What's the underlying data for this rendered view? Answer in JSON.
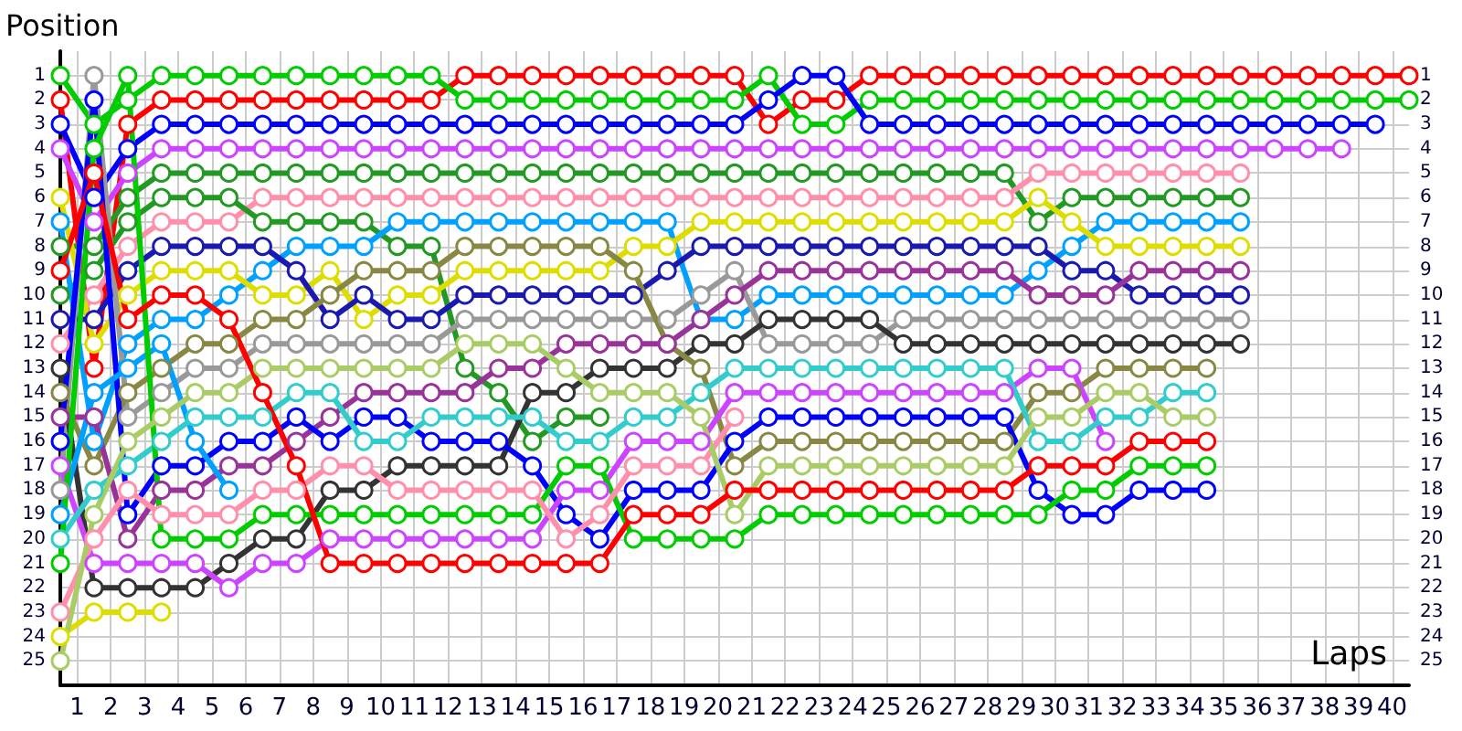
{
  "chart_data": {
    "type": "line",
    "xlabel": "Laps",
    "ylabel": "Position",
    "marker": "circle",
    "line_style": "solid",
    "grid": true,
    "x": [
      0,
      1,
      2,
      3,
      4,
      5,
      6,
      7,
      8,
      9,
      10,
      11,
      12,
      13,
      14,
      15,
      16,
      17,
      18,
      19,
      20,
      21,
      22,
      23,
      24,
      25,
      26,
      27,
      28,
      29,
      30,
      31,
      32,
      33,
      34,
      35,
      36,
      37,
      38,
      39,
      40
    ],
    "xlim": [
      0,
      40
    ],
    "xticks": [
      {
        "value": 0.5,
        "label": "1"
      },
      {
        "value": 1.5,
        "label": "2"
      },
      {
        "value": 2.5,
        "label": "3"
      },
      {
        "value": 3.5,
        "label": "4"
      },
      {
        "value": 4.5,
        "label": "5"
      },
      {
        "value": 5.5,
        "label": "6"
      },
      {
        "value": 6.5,
        "label": "7"
      },
      {
        "value": 7.5,
        "label": "8"
      },
      {
        "value": 8.5,
        "label": "9"
      },
      {
        "value": 9.5,
        "label": "10"
      },
      {
        "value": 10.5,
        "label": "11"
      },
      {
        "value": 11.5,
        "label": "12"
      },
      {
        "value": 12.5,
        "label": "13"
      },
      {
        "value": 13.5,
        "label": "14"
      },
      {
        "value": 14.5,
        "label": "15"
      },
      {
        "value": 15.5,
        "label": "16"
      },
      {
        "value": 16.5,
        "label": "17"
      },
      {
        "value": 17.5,
        "label": "18"
      },
      {
        "value": 18.5,
        "label": "19"
      },
      {
        "value": 19.5,
        "label": "20"
      },
      {
        "value": 20.5,
        "label": "21"
      },
      {
        "value": 21.5,
        "label": "22"
      },
      {
        "value": 22.5,
        "label": "23"
      },
      {
        "value": 23.5,
        "label": "24"
      },
      {
        "value": 24.5,
        "label": "25"
      },
      {
        "value": 25.5,
        "label": "26"
      },
      {
        "value": 26.5,
        "label": "27"
      },
      {
        "value": 27.5,
        "label": "28"
      },
      {
        "value": 28.5,
        "label": "29"
      },
      {
        "value": 29.5,
        "label": "30"
      },
      {
        "value": 30.5,
        "label": "31"
      },
      {
        "value": 31.5,
        "label": "32"
      },
      {
        "value": 32.5,
        "label": "33"
      },
      {
        "value": 33.5,
        "label": "34"
      },
      {
        "value": 34.5,
        "label": "35"
      },
      {
        "value": 35.5,
        "label": "36"
      },
      {
        "value": 36.5,
        "label": "37"
      },
      {
        "value": 37.5,
        "label": "38"
      },
      {
        "value": 38.5,
        "label": "39"
      },
      {
        "value": 39.5,
        "label": "40"
      }
    ],
    "ylim": [
      26,
      0
    ],
    "yticks": [
      1,
      2,
      3,
      4,
      5,
      6,
      7,
      8,
      9,
      10,
      11,
      12,
      13,
      14,
      15,
      16,
      17,
      18,
      19,
      20,
      21,
      22,
      23,
      24,
      25
    ],
    "y2lim": [
      26,
      0
    ],
    "y2ticks": [
      1,
      2,
      3,
      4,
      5,
      6,
      7,
      8,
      9,
      10,
      11,
      12,
      13,
      14,
      15,
      16,
      17,
      18,
      19,
      20,
      21,
      22,
      23,
      24,
      25
    ],
    "series": [
      {
        "color": "#ff0000",
        "values": [
          2,
          13,
          3,
          2,
          2,
          2,
          2,
          2,
          2,
          2,
          2,
          2,
          1,
          1,
          1,
          1,
          1,
          1,
          1,
          1,
          1,
          3,
          2,
          2,
          1,
          1,
          1,
          1,
          1,
          1,
          1,
          1,
          1,
          1,
          1,
          1,
          1,
          1,
          1,
          1,
          1
        ]
      },
      {
        "color": "#00cc00",
        "values": [
          1,
          3,
          2,
          1,
          1,
          1,
          1,
          1,
          1,
          1,
          1,
          1,
          2,
          2,
          2,
          2,
          2,
          2,
          2,
          2,
          2,
          1,
          3,
          3,
          2,
          2,
          2,
          2,
          2,
          2,
          2,
          2,
          2,
          2,
          2,
          2,
          2,
          2,
          2,
          2,
          2
        ]
      },
      {
        "color": "#0000ff",
        "values": [
          3,
          6,
          4,
          3,
          3,
          3,
          3,
          3,
          3,
          3,
          3,
          3,
          3,
          3,
          3,
          3,
          3,
          3,
          3,
          3,
          3,
          2,
          1,
          1,
          3,
          3,
          3,
          3,
          3,
          3,
          3,
          3,
          3,
          3,
          3,
          3,
          3,
          3,
          3,
          3,
          null
        ]
      },
      {
        "color": "#cc44ff",
        "values": [
          4,
          7,
          5,
          4,
          4,
          4,
          4,
          4,
          4,
          4,
          4,
          4,
          4,
          4,
          4,
          4,
          4,
          4,
          4,
          4,
          4,
          4,
          4,
          4,
          4,
          4,
          4,
          4,
          4,
          4,
          4,
          4,
          4,
          4,
          4,
          4,
          4,
          4,
          4,
          null,
          null
        ]
      },
      {
        "color": "#229922",
        "values": [
          8,
          8,
          6,
          5,
          5,
          5,
          5,
          5,
          5,
          5,
          5,
          5,
          5,
          5,
          5,
          5,
          5,
          5,
          5,
          5,
          5,
          5,
          5,
          5,
          5,
          5,
          5,
          5,
          5,
          7,
          6,
          6,
          6,
          6,
          6,
          6,
          null,
          null,
          null,
          null,
          null
        ]
      },
      {
        "color": "#ff8faa",
        "values": [
          12,
          10,
          8,
          7,
          7,
          7,
          6,
          6,
          6,
          6,
          6,
          6,
          6,
          6,
          6,
          6,
          6,
          6,
          6,
          6,
          6,
          6,
          6,
          6,
          6,
          6,
          6,
          6,
          6,
          5,
          5,
          5,
          5,
          5,
          5,
          5,
          null,
          null,
          null,
          null,
          null
        ]
      },
      {
        "color": "#229922",
        "values": [
          10,
          9,
          7,
          6,
          6,
          6,
          7,
          7,
          7,
          7,
          8,
          8,
          13,
          14,
          16,
          15,
          15,
          null,
          null,
          null,
          null,
          null,
          null,
          null,
          null,
          null,
          null,
          null,
          null,
          null,
          null,
          null,
          null,
          null,
          null,
          null,
          null,
          null,
          null,
          null,
          null
        ]
      },
      {
        "color": "#00a0ff",
        "values": [
          7,
          16,
          12,
          11,
          11,
          10,
          9,
          8,
          8,
          8,
          7,
          7,
          7,
          7,
          7,
          7,
          7,
          7,
          7,
          11,
          11,
          10,
          10,
          10,
          10,
          10,
          10,
          10,
          10,
          9,
          8,
          7,
          7,
          7,
          7,
          7,
          null,
          null,
          null,
          null,
          null
        ]
      },
      {
        "color": "#dddd00",
        "values": [
          6,
          12,
          10,
          9,
          9,
          9,
          10,
          10,
          9,
          11,
          10,
          10,
          9,
          9,
          9,
          9,
          9,
          8,
          8,
          7,
          7,
          7,
          7,
          7,
          7,
          7,
          7,
          7,
          7,
          6,
          7,
          8,
          8,
          8,
          8,
          8,
          null,
          null,
          null,
          null,
          null
        ]
      },
      {
        "color": "#1a1ab0",
        "values": [
          11,
          11,
          9,
          8,
          8,
          8,
          8,
          9,
          11,
          10,
          11,
          11,
          10,
          10,
          10,
          10,
          10,
          10,
          9,
          8,
          8,
          8,
          8,
          8,
          8,
          8,
          8,
          8,
          8,
          8,
          9,
          9,
          10,
          10,
          10,
          10,
          null,
          null,
          null,
          null,
          null
        ]
      },
      {
        "color": "#999999",
        "values": [
          18,
          1,
          15,
          14,
          13,
          13,
          12,
          12,
          12,
          12,
          12,
          12,
          11,
          11,
          11,
          11,
          11,
          11,
          11,
          10,
          9,
          12,
          12,
          12,
          12,
          11,
          11,
          11,
          11,
          11,
          11,
          11,
          11,
          11,
          11,
          11,
          null,
          null,
          null,
          null,
          null
        ]
      },
      {
        "color": "#333333",
        "values": [
          13,
          22,
          22,
          22,
          22,
          21,
          20,
          20,
          18,
          18,
          17,
          17,
          17,
          17,
          14,
          14,
          13,
          13,
          13,
          12,
          12,
          11,
          11,
          11,
          11,
          12,
          12,
          12,
          12,
          12,
          12,
          12,
          12,
          12,
          12,
          12,
          null,
          null,
          null,
          null,
          null
        ]
      },
      {
        "color": "#888844",
        "values": [
          14,
          17,
          14,
          13,
          12,
          12,
          11,
          11,
          10,
          9,
          9,
          9,
          8,
          8,
          8,
          8,
          8,
          9,
          12,
          13,
          17,
          16,
          16,
          16,
          16,
          16,
          16,
          16,
          16,
          14,
          14,
          13,
          13,
          13,
          13,
          null,
          null,
          null,
          null,
          null,
          null
        ]
      },
      {
        "color": "#993399",
        "values": [
          15,
          15,
          20,
          18,
          18,
          17,
          17,
          16,
          15,
          14,
          14,
          14,
          14,
          13,
          13,
          12,
          12,
          12,
          12,
          11,
          10,
          9,
          9,
          9,
          9,
          9,
          9,
          9,
          9,
          10,
          10,
          10,
          9,
          9,
          9,
          9,
          null,
          null,
          null,
          null,
          null
        ]
      },
      {
        "color": "#0000ff",
        "values": [
          16,
          2,
          19,
          17,
          17,
          16,
          16,
          15,
          16,
          15,
          15,
          16,
          16,
          16,
          17,
          19,
          20,
          18,
          18,
          18,
          16,
          15,
          15,
          15,
          15,
          15,
          15,
          15,
          15,
          18,
          19,
          19,
          18,
          18,
          18,
          null,
          null,
          null,
          null,
          null,
          null
        ]
      },
      {
        "color": "#cc44ff",
        "values": [
          17,
          21,
          21,
          21,
          21,
          22,
          21,
          21,
          20,
          20,
          20,
          20,
          20,
          20,
          20,
          18,
          18,
          16,
          16,
          16,
          14,
          14,
          14,
          14,
          14,
          14,
          14,
          14,
          14,
          13,
          13,
          16,
          null,
          null,
          null,
          null,
          null,
          null,
          null,
          null,
          null
        ]
      },
      {
        "color": "#00a0ff",
        "values": [
          19,
          14,
          13,
          12,
          16,
          18,
          null,
          null,
          null,
          null,
          null,
          null,
          null,
          null,
          null,
          null,
          null,
          null,
          null,
          null,
          null,
          null,
          null,
          null,
          null,
          null,
          null,
          null,
          null,
          null,
          null,
          null,
          null,
          null,
          null,
          null,
          null,
          null,
          null,
          null,
          null
        ]
      },
      {
        "color": "#33cccc",
        "values": [
          20,
          18,
          17,
          16,
          15,
          15,
          15,
          14,
          14,
          16,
          16,
          15,
          15,
          15,
          15,
          16,
          16,
          15,
          15,
          14,
          13,
          13,
          13,
          13,
          13,
          13,
          13,
          13,
          13,
          16,
          16,
          15,
          15,
          14,
          14,
          null,
          null,
          null,
          null,
          null,
          null
        ]
      },
      {
        "color": "#00cc00",
        "values": [
          21,
          4,
          1,
          20,
          20,
          20,
          19,
          19,
          19,
          19,
          19,
          19,
          19,
          19,
          19,
          17,
          17,
          20,
          20,
          20,
          20,
          19,
          19,
          19,
          19,
          19,
          19,
          19,
          19,
          19,
          18,
          18,
          17,
          17,
          17,
          null,
          null,
          null,
          null,
          null,
          null
        ]
      },
      {
        "color": "#ff8faa",
        "values": [
          23,
          20,
          18,
          19,
          19,
          19,
          18,
          18,
          17,
          17,
          18,
          18,
          18,
          18,
          18,
          20,
          19,
          17,
          17,
          17,
          15,
          null,
          null,
          null,
          null,
          null,
          null,
          null,
          null,
          null,
          null,
          null,
          null,
          null,
          null,
          null,
          null,
          null,
          null,
          null,
          null
        ]
      },
      {
        "color": "#dddd00",
        "values": [
          24,
          23,
          23,
          23,
          null,
          null,
          null,
          null,
          null,
          null,
          null,
          null,
          null,
          null,
          null,
          null,
          null,
          null,
          null,
          null,
          null,
          null,
          null,
          null,
          null,
          null,
          null,
          null,
          null,
          null,
          null,
          null,
          null,
          null,
          null,
          null,
          null,
          null,
          null,
          null,
          null
        ]
      },
      {
        "color": "#aacc66",
        "values": [
          25,
          19,
          16,
          15,
          14,
          14,
          13,
          13,
          13,
          13,
          13,
          13,
          12,
          12,
          12,
          13,
          14,
          14,
          14,
          15,
          19,
          17,
          17,
          17,
          17,
          17,
          17,
          17,
          17,
          15,
          15,
          14,
          14,
          15,
          15,
          null,
          null,
          null,
          null,
          null,
          null
        ]
      },
      {
        "color": "#ff0000",
        "values": [
          9,
          5,
          11,
          10,
          10,
          11,
          14,
          17,
          21,
          21,
          21,
          21,
          21,
          21,
          21,
          21,
          21,
          19,
          19,
          19,
          18,
          18,
          18,
          18,
          18,
          18,
          18,
          18,
          18,
          17,
          17,
          17,
          16,
          16,
          16,
          null,
          null,
          null,
          null,
          null,
          null
        ]
      }
    ]
  }
}
